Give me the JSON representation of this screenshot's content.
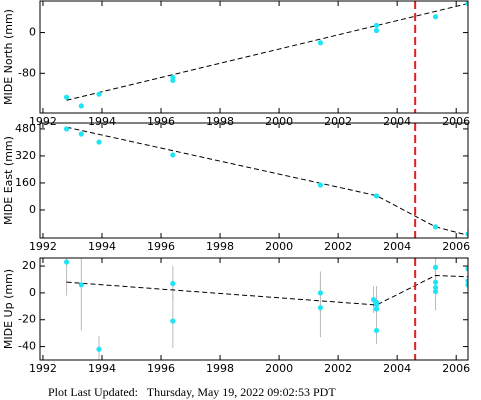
{
  "chart_data": [
    {
      "type": "scatter",
      "ylabel": "MIDE North (mm)",
      "color": "#1ee4f4",
      "x": [
        1992.8,
        1993.3,
        1993.9,
        1996.4,
        1996.4,
        2001.4,
        2003.3,
        2003.3,
        2005.3,
        2006.4
      ],
      "values": [
        -127,
        -144,
        -121,
        -88,
        -94,
        -20,
        14,
        4,
        31,
        57
      ],
      "fit": {
        "x": [
          1992.8,
          2006.4
        ],
        "y": [
          -133,
          57
        ]
      },
      "vline": 2004.61,
      "xlim": [
        1991.9,
        2006.4
      ],
      "xticks": [
        1992,
        1994,
        1996,
        1998,
        2000,
        2002,
        2004,
        2006
      ],
      "ylim": [
        -158,
        62
      ],
      "yticks": [
        -80,
        0
      ]
    },
    {
      "type": "scatter",
      "ylabel": "MIDE East (mm)",
      "color": "#1ee4f4",
      "x": [
        1992.8,
        1993.3,
        1993.9,
        1996.4,
        2001.4,
        2003.3,
        2005.3,
        2006.4
      ],
      "values": [
        480,
        450,
        402,
        326,
        148,
        83,
        -100,
        -142
      ],
      "fit": {
        "x": [
          1992.8,
          2003.3,
          2005.3,
          2006.4
        ],
        "y": [
          490,
          85,
          -100,
          -150
        ]
      },
      "vline": 2004.61,
      "xlim": [
        1991.9,
        2006.4
      ],
      "xticks": [
        1992,
        1994,
        1996,
        1998,
        2000,
        2002,
        2004,
        2006
      ],
      "ylim": [
        -166,
        515
      ],
      "yticks": [
        0,
        160,
        320,
        480
      ]
    },
    {
      "type": "scatter",
      "ylabel": "MIDE Up (mm)",
      "color": "#1ee4f4",
      "x": [
        1992.8,
        1993.3,
        1993.9,
        1996.4,
        1996.4,
        2001.4,
        2001.4,
        2003.2,
        2003.3,
        2003.3,
        2003.3,
        2003.3,
        2005.3,
        2005.3,
        2005.3,
        2005.3,
        2006.4,
        2006.4,
        2006.4
      ],
      "values": [
        23,
        6,
        -42,
        7,
        -21,
        0,
        -11,
        -5,
        -7,
        -9,
        -12,
        -28,
        19,
        8,
        4,
        1,
        18,
        9,
        6
      ],
      "errors": [
        25,
        34,
        10,
        13,
        20,
        16,
        22,
        10,
        12,
        14,
        12,
        10,
        10,
        10,
        12,
        14,
        11,
        12,
        14
      ],
      "fit": {
        "x": [
          1992.8,
          2003.3,
          2005.3,
          2006.4
        ],
        "y": [
          8,
          -9,
          13,
          12
        ]
      },
      "vline": 2004.61,
      "xlim": [
        1991.9,
        2006.4
      ],
      "xticks": [
        1992,
        1994,
        1996,
        1998,
        2000,
        2002,
        2004,
        2006
      ],
      "ylim": [
        -50,
        26
      ],
      "yticks": [
        -40,
        -20,
        0,
        20
      ]
    }
  ],
  "footer": "Plot Last Updated:   Thursday, May 19, 2022 09:02:53 PDT"
}
